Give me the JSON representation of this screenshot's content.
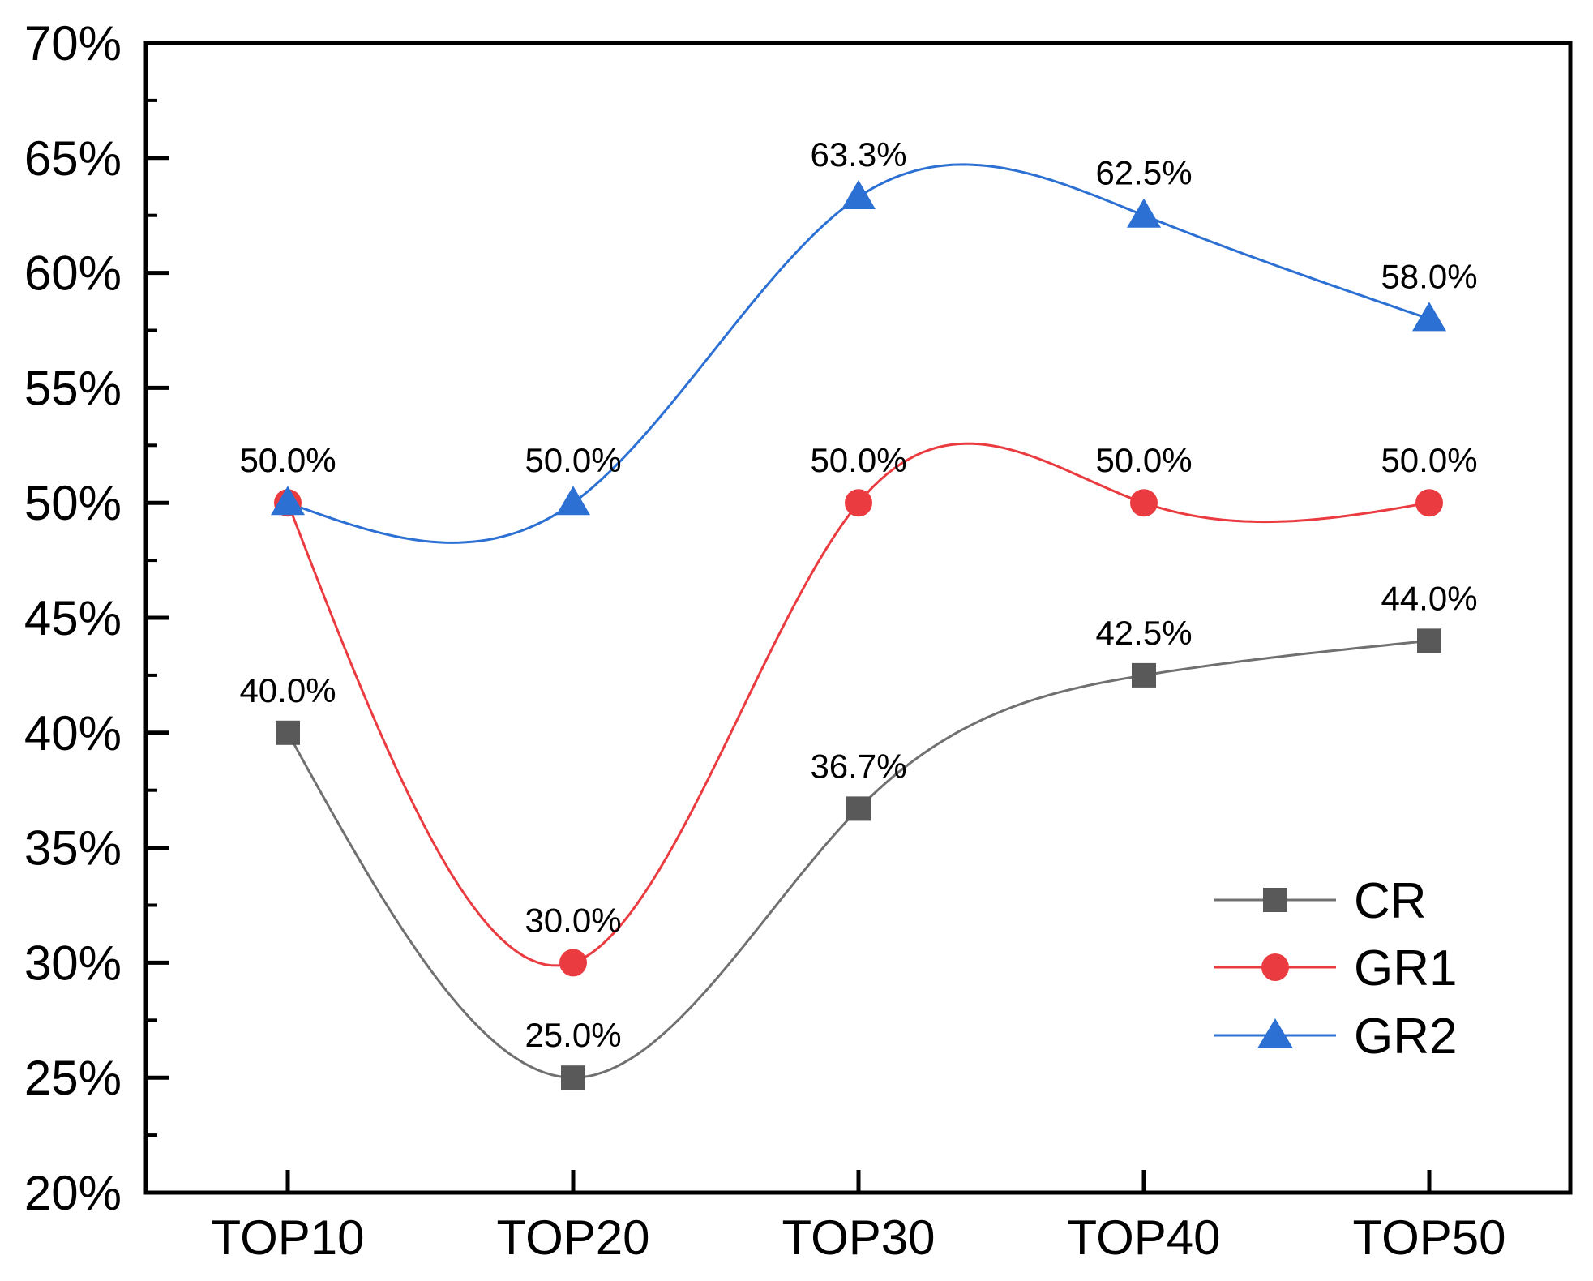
{
  "chart_data": {
    "type": "line",
    "line_style": "natural-cubic-spline",
    "grid": false,
    "background_color": "#ffffff",
    "axis_color": "#000000",
    "categories": [
      "TOP10",
      "TOP20",
      "TOP30",
      "TOP40",
      "TOP50"
    ],
    "series": [
      {
        "name": "CR",
        "marker": "square",
        "color": "#707070",
        "marker_color": "#595959",
        "values": [
          40.0,
          25.0,
          36.7,
          42.5,
          44.0
        ],
        "labels": [
          "40.0%",
          "25.0%",
          "36.7%",
          "42.5%",
          "44.0%"
        ]
      },
      {
        "name": "GR1",
        "marker": "circle",
        "color": "#ea3c40",
        "marker_color": "#ea3c40",
        "values": [
          50.0,
          30.0,
          50.0,
          50.0,
          50.0
        ],
        "labels": [
          "50.0%",
          "30.0%",
          "50.0%",
          "50.0%",
          "50.0%"
        ]
      },
      {
        "name": "GR2",
        "marker": "triangle",
        "color": "#2c70d3",
        "marker_color": "#2c70d3",
        "values": [
          50.0,
          50.0,
          63.3,
          62.5,
          58.0
        ],
        "labels": [
          "50.0%",
          "50.0%",
          "63.3%",
          "62.5%",
          "58.0%"
        ]
      }
    ],
    "xlabel": "",
    "ylabel": "",
    "yaxis": {
      "min": 20,
      "max": 70,
      "major_step": 5,
      "minor_step": 2.5,
      "tick_labels": [
        "20%",
        "25%",
        "30%",
        "35%",
        "40%",
        "45%",
        "50%",
        "55%",
        "60%",
        "65%",
        "70%"
      ]
    },
    "ylim": [
      20,
      70
    ],
    "legend_position": "inside-bottom-right",
    "legend_entries": [
      "CR",
      "GR1",
      "GR2"
    ]
  }
}
